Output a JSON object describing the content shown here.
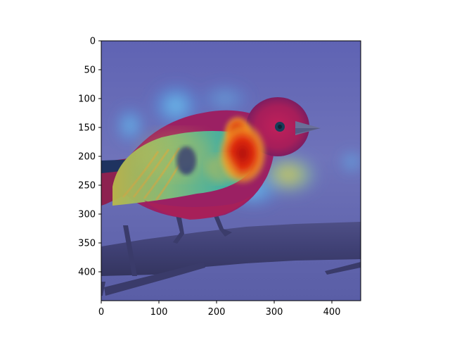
{
  "image_axes": {
    "x_ticks": [
      "0",
      "100",
      "200",
      "300",
      "400"
    ],
    "y_ticks": [
      "0",
      "50",
      "100",
      "150",
      "200",
      "250",
      "300",
      "350",
      "400"
    ],
    "x_range": [
      0,
      450
    ],
    "y_range": [
      0,
      450
    ],
    "image_width": 450,
    "image_height": 450,
    "colormap": "jet",
    "overlay": "attention heatmap",
    "subject": "bird on branch"
  }
}
